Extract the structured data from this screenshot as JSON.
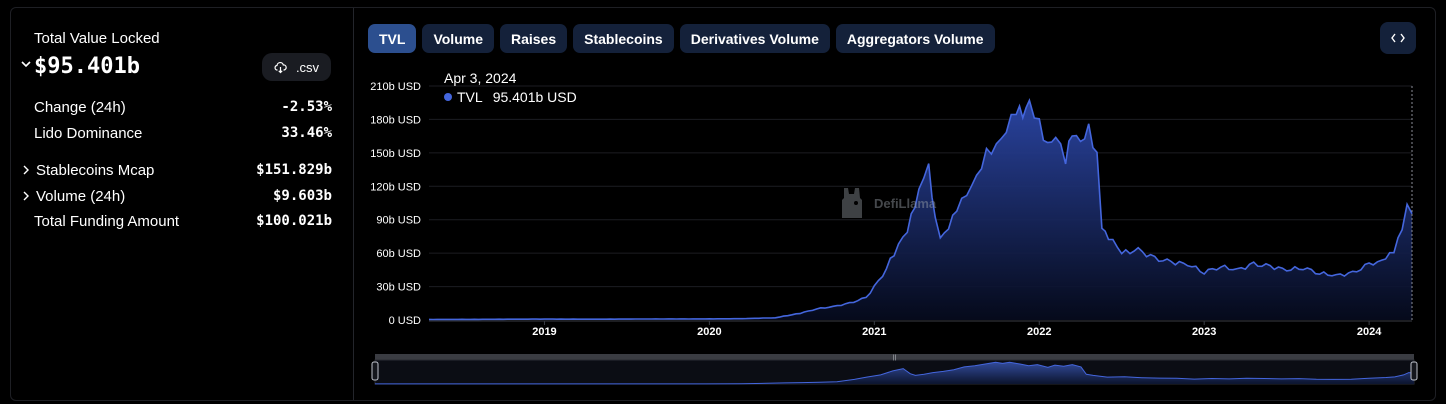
{
  "summary": {
    "title": "Total Value Locked",
    "value": "$95.401b",
    "csv_label": ".csv",
    "change_label": "Change (24h)",
    "change_value": "-2.53%",
    "dominance_label": "Lido Dominance",
    "dominance_value": "33.46%",
    "stablecoins_label": "Stablecoins Mcap",
    "stablecoins_value": "$151.829b",
    "volume_label": "Volume (24h)",
    "volume_value": "$9.603b",
    "funding_label": "Total Funding Amount",
    "funding_value": "$100.021b"
  },
  "tabs": [
    "TVL",
    "Volume",
    "Raises",
    "Stablecoins",
    "Derivatives Volume",
    "Aggregators Volume"
  ],
  "active_tab": "TVL",
  "tooltip": {
    "date": "Apr 3, 2024",
    "series": "TVL",
    "value": "95.401b USD"
  },
  "watermark": "DefiLlama",
  "colors": {
    "line": "#4466dd",
    "accent_tab": "#2c4f8f",
    "tab_bg": "#14213a"
  },
  "chart_data": {
    "type": "area",
    "ylabel_unit": "USD",
    "y_ticks": [
      "0 USD",
      "30b USD",
      "60b USD",
      "90b USD",
      "120b USD",
      "150b USD",
      "180b USD",
      "210b USD"
    ],
    "x_ticks": [
      "2019",
      "2020",
      "2021",
      "2022",
      "2023",
      "2024"
    ],
    "ylim": [
      0,
      210
    ],
    "xlim": [
      2018.3,
      2024.26
    ],
    "grid": true,
    "series": [
      {
        "name": "TVL",
        "x": [
          2018.3,
          2018.6,
          2019.0,
          2019.3,
          2019.6,
          2020.0,
          2020.2,
          2020.4,
          2020.55,
          2020.65,
          2020.75,
          2020.85,
          2020.95,
          2021.05,
          2021.12,
          2021.2,
          2021.27,
          2021.33,
          2021.37,
          2021.4,
          2021.45,
          2021.5,
          2021.56,
          2021.62,
          2021.68,
          2021.74,
          2021.8,
          2021.86,
          2021.9,
          2021.94,
          2022.0,
          2022.05,
          2022.1,
          2022.16,
          2022.2,
          2022.25,
          2022.3,
          2022.35,
          2022.38,
          2022.42,
          2022.5,
          2022.6,
          2022.7,
          2022.8,
          2022.9,
          2023.0,
          2023.1,
          2023.2,
          2023.3,
          2023.4,
          2023.5,
          2023.6,
          2023.7,
          2023.8,
          2023.9,
          2024.0,
          2024.05,
          2024.1,
          2024.15,
          2024.2,
          2024.23,
          2024.26
        ],
        "values": [
          0.5,
          0.6,
          0.8,
          0.7,
          0.9,
          1,
          1.2,
          2,
          6,
          10,
          12,
          15,
          20,
          40,
          60,
          80,
          115,
          135,
          90,
          75,
          85,
          100,
          110,
          125,
          150,
          160,
          175,
          190,
          180,
          190,
          175,
          160,
          170,
          145,
          165,
          155,
          170,
          150,
          85,
          75,
          60,
          63,
          55,
          52,
          50,
          43,
          48,
          45,
          50,
          48,
          45,
          47,
          42,
          40,
          42,
          50,
          53,
          57,
          62,
          80,
          100,
          95.4
        ]
      }
    ]
  }
}
